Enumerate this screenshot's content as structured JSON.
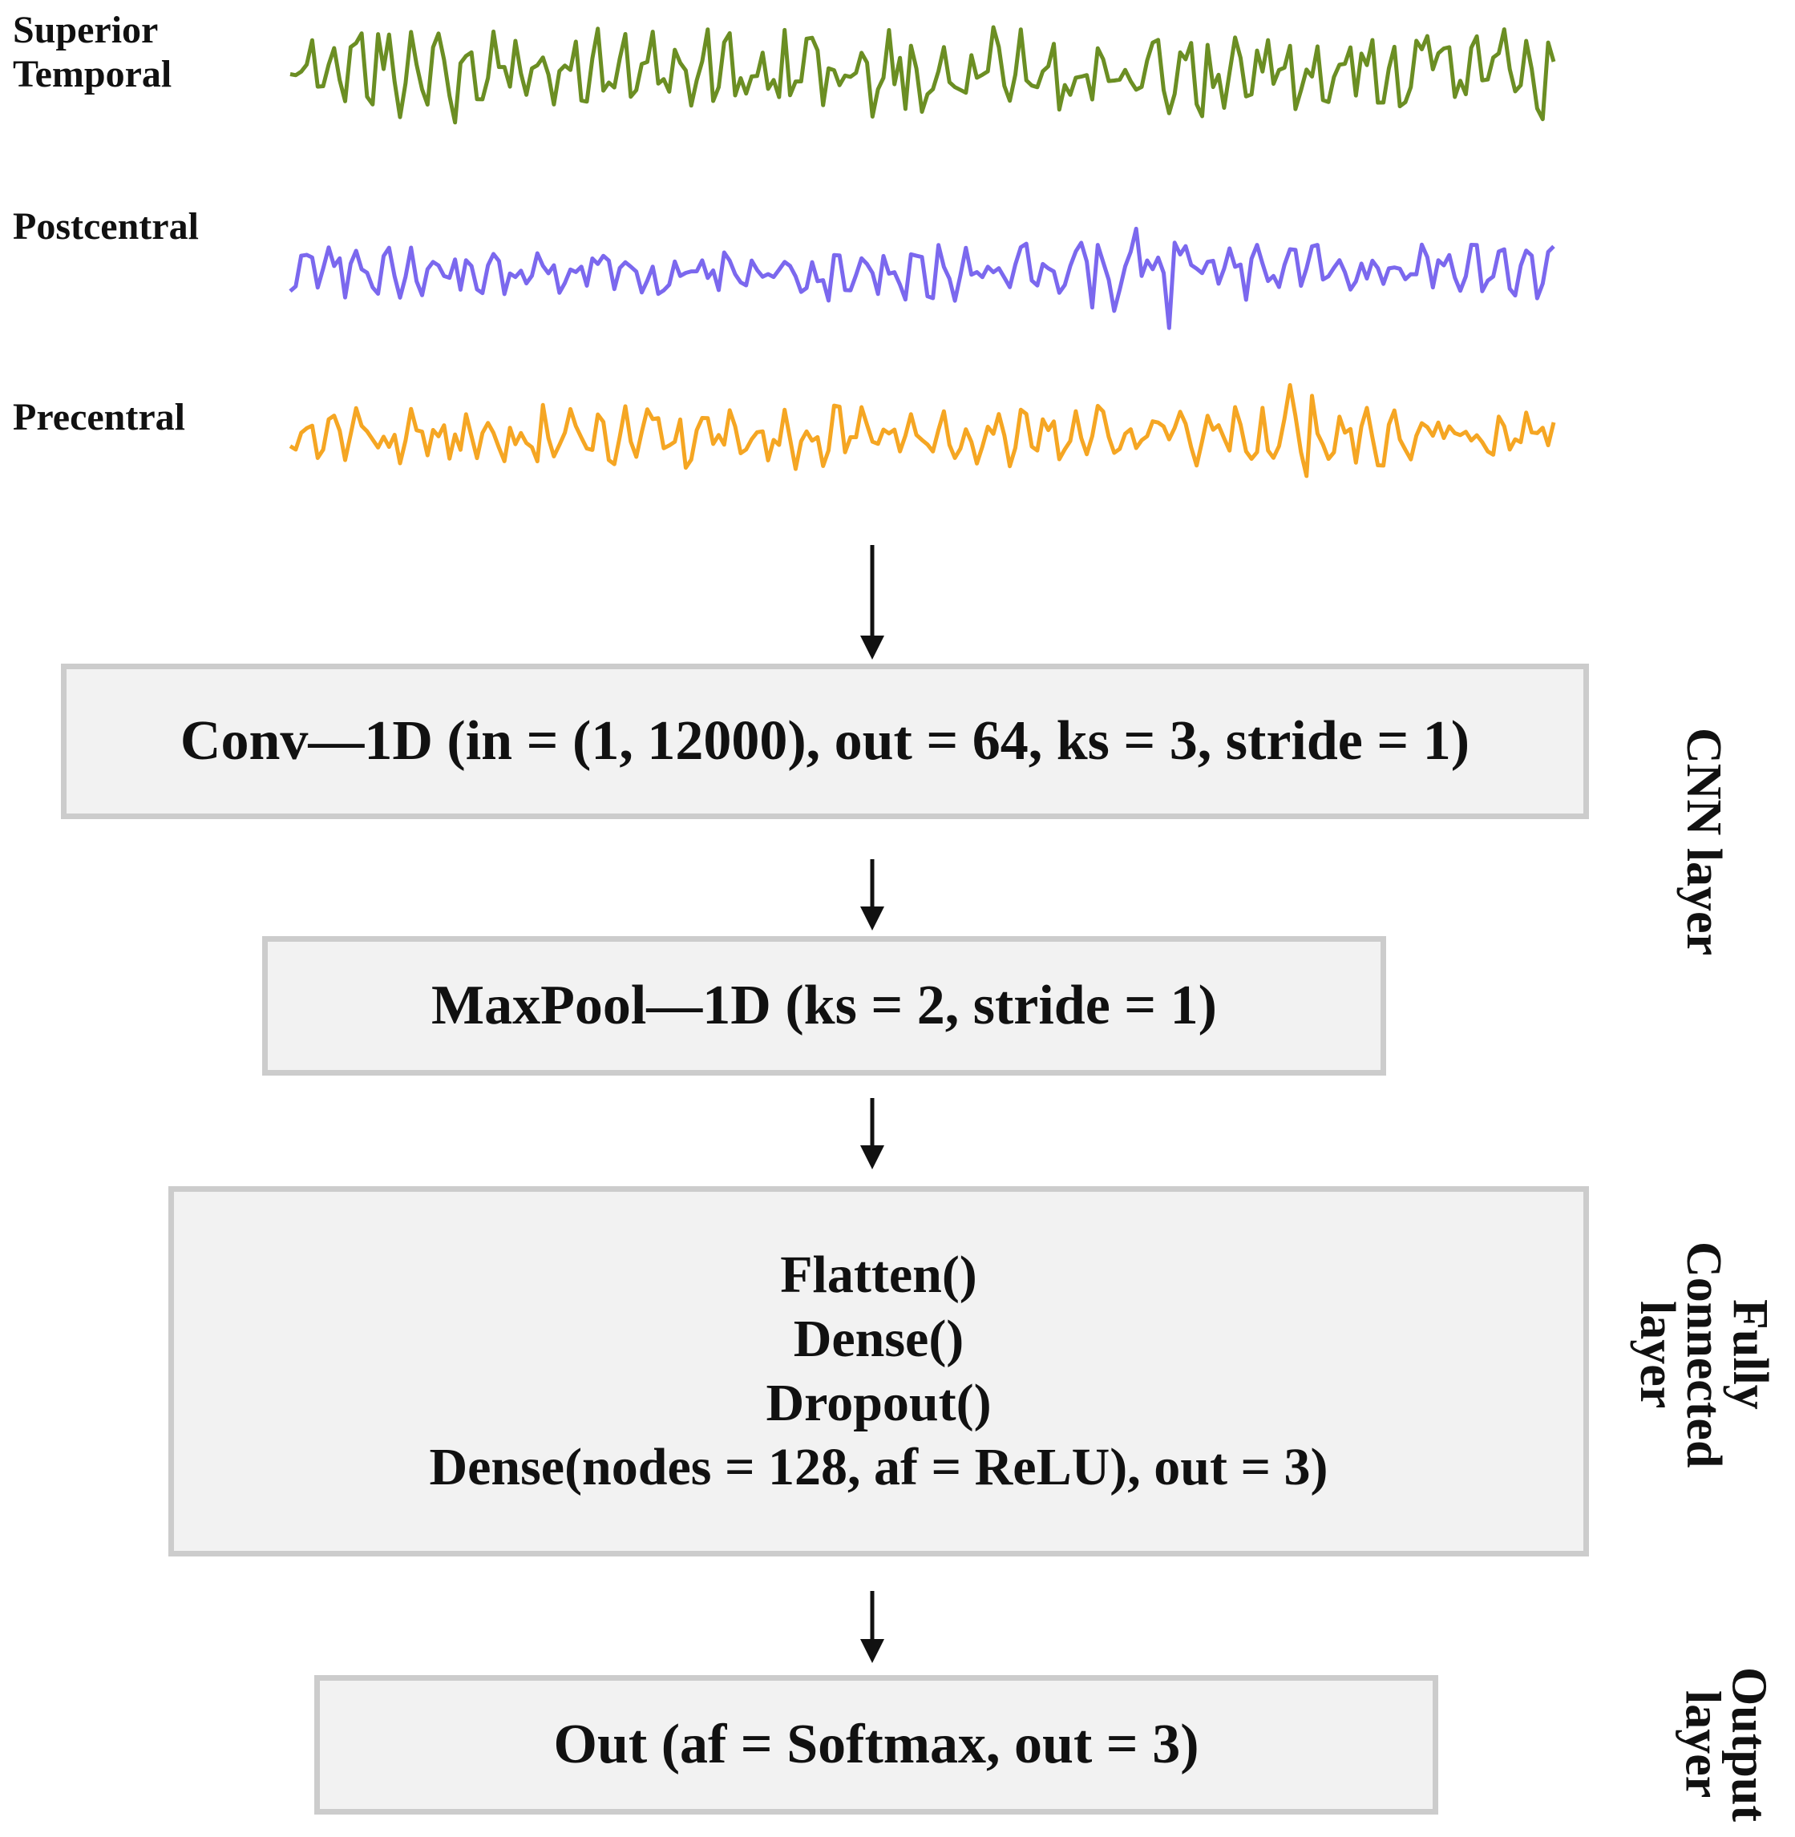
{
  "signals": [
    {
      "label_lines": [
        "Superior",
        "Temporal"
      ],
      "color": "#6b8e23"
    },
    {
      "label_lines": [
        "Postcentral"
      ],
      "color": "#7b68ee"
    },
    {
      "label_lines": [
        "Precentral"
      ],
      "color": "#f5a623"
    }
  ],
  "blocks": {
    "conv": "Conv—1D (in = (1, 12000), out = 64, ks = 3, stride = 1)",
    "maxpool": "MaxPool—1D (ks = 2, stride = 1)",
    "fc_lines": [
      "Flatten()",
      "Dense()",
      "Dropout()",
      "Dense(nodes = 128, af = ReLU), out = 3)"
    ],
    "out": "Out (af = Softmax,  out = 3)"
  },
  "side_labels": {
    "cnn": [
      "CNN layer"
    ],
    "fc": [
      "Fully",
      "Connected",
      "layer"
    ],
    "output": [
      "Output",
      "layer"
    ]
  }
}
